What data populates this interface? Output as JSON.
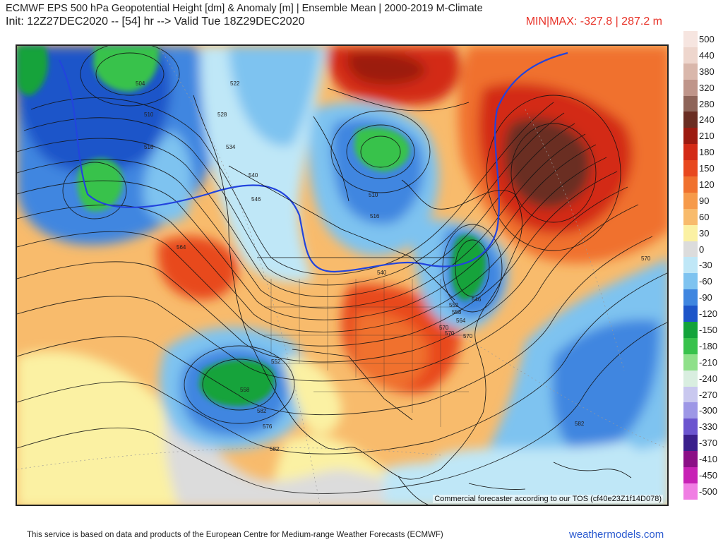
{
  "header": {
    "title": "ECMWF EPS 500 hPa Geopotential Height [dm] & Anomaly [m] | Ensemble Mean | 2000-2019 M-Climate",
    "init": "Init: 12Z27DEC2020 -- [54] hr --> Valid Tue 18Z29DEC2020",
    "minmax": "MIN|MAX: -327.8 | 287.2 m"
  },
  "map": {
    "tos_notice": "Commercial forecaster according to our TOS (cf40e23Z1f14D078)",
    "contour_labels": [
      "504",
      "510",
      "516",
      "522",
      "528",
      "534",
      "540",
      "546",
      "564",
      "570",
      "582",
      "570",
      "576",
      "582",
      "582",
      "558",
      "552",
      "510",
      "516",
      "540",
      "546",
      "552",
      "558",
      "564",
      "570",
      "570"
    ]
  },
  "legend": [
    {
      "label": "500",
      "color": "#f6e5e0"
    },
    {
      "label": "440",
      "color": "#eed6cd"
    },
    {
      "label": "380",
      "color": "#d9b7ab"
    },
    {
      "label": "320",
      "color": "#bf958a"
    },
    {
      "label": "280",
      "color": "#8e6459"
    },
    {
      "label": "240",
      "color": "#6a2d22"
    },
    {
      "label": "210",
      "color": "#9c1a10"
    },
    {
      "label": "180",
      "color": "#d32a16"
    },
    {
      "label": "150",
      "color": "#e8481e"
    },
    {
      "label": "120",
      "color": "#f0712e"
    },
    {
      "label": "90",
      "color": "#f69a4a"
    },
    {
      "label": "60",
      "color": "#f8bb6c"
    },
    {
      "label": "30",
      "color": "#fbf1a3"
    },
    {
      "label": "0",
      "color": "#dcdcdc"
    },
    {
      "label": "-30",
      "color": "#bfe7f7"
    },
    {
      "label": "-60",
      "color": "#7ec3f0"
    },
    {
      "label": "-90",
      "color": "#3f86e0"
    },
    {
      "label": "-120",
      "color": "#1d55c9"
    },
    {
      "label": "-150",
      "color": "#13a33a"
    },
    {
      "label": "-180",
      "color": "#38c24c"
    },
    {
      "label": "-210",
      "color": "#8fe08a"
    },
    {
      "label": "-240",
      "color": "#d9eee0"
    },
    {
      "label": "-270",
      "color": "#c9c8ef"
    },
    {
      "label": "-300",
      "color": "#9d97e6"
    },
    {
      "label": "-330",
      "color": "#6b55cf"
    },
    {
      "label": "-370",
      "color": "#3a1f8c"
    },
    {
      "label": "-410",
      "color": "#8b0f86"
    },
    {
      "label": "-450",
      "color": "#c722b5"
    },
    {
      "label": "-500",
      "color": "#f07ee3"
    }
  ],
  "footer": {
    "credit": "This service is based on data and products of the European Centre for Medium-range Weather Forecasts (ECMWF)",
    "brand": "weathermodels.com"
  }
}
